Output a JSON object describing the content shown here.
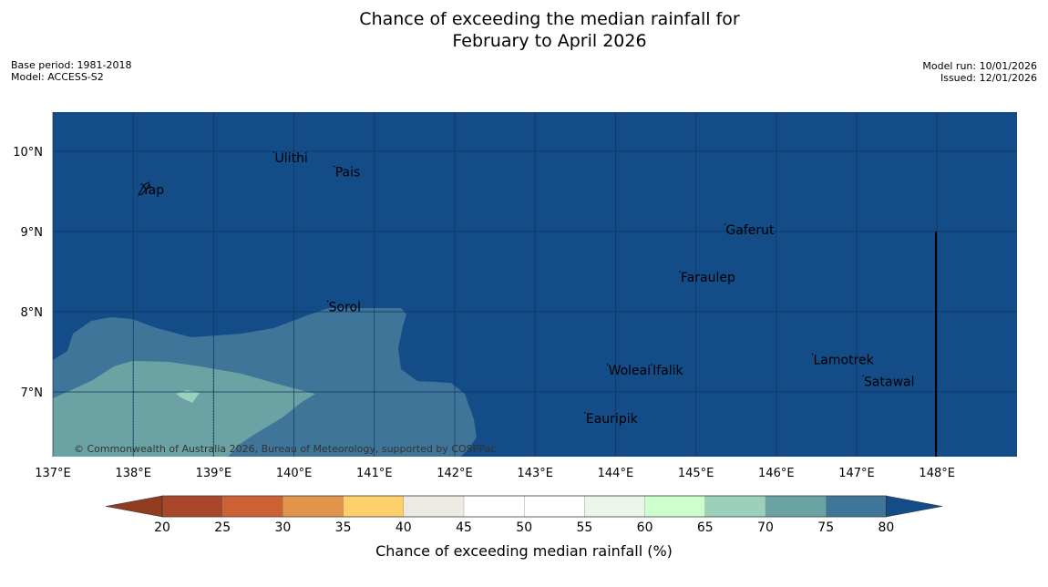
{
  "title": {
    "line1": "Chance of exceeding the median rainfall for",
    "line2": "February to April 2026"
  },
  "meta": {
    "base_period": "Base period: 1981-2018",
    "model": "Model: ACCESS-S2",
    "model_run": "Model run: 10/01/2026",
    "issued": "Issued: 12/01/2026"
  },
  "map": {
    "lon_range": [
      137,
      149
    ],
    "lat_range": [
      6.2,
      10.5
    ],
    "lon_ticks": [
      "137°E",
      "138°E",
      "139°E",
      "140°E",
      "141°E",
      "142°E",
      "143°E",
      "144°E",
      "145°E",
      "146°E",
      "147°E",
      "148°E"
    ],
    "lat_ticks": [
      "10°N",
      "9°N",
      "8°N",
      "7°N"
    ],
    "places": [
      {
        "name": "Ulithi",
        "lon": 139.75,
        "lat": 9.9
      },
      {
        "name": "Pais",
        "lon": 140.5,
        "lat": 9.72
      },
      {
        "name": "Yap",
        "lon": 138.1,
        "lat": 9.5
      },
      {
        "name": "Gaferut",
        "lon": 145.36,
        "lat": 9.0
      },
      {
        "name": "Faraulep",
        "lon": 144.8,
        "lat": 8.41
      },
      {
        "name": "Sorol",
        "lon": 140.42,
        "lat": 8.04
      },
      {
        "name": "Woleai",
        "lon": 143.9,
        "lat": 7.25
      },
      {
        "name": "Ifalik",
        "lon": 144.45,
        "lat": 7.25
      },
      {
        "name": "Lamotrek",
        "lon": 146.45,
        "lat": 7.38
      },
      {
        "name": "Satawal",
        "lon": 147.08,
        "lat": 7.11
      },
      {
        "name": "Eauripik",
        "lon": 143.62,
        "lat": 6.65
      }
    ],
    "copyright": "© Commonwealth of Australia 2026, Bureau of Meteorology, supported by COSPPac"
  },
  "colorbar": {
    "ticks": [
      "20",
      "25",
      "30",
      "35",
      "40",
      "45",
      "50",
      "55",
      "60",
      "65",
      "70",
      "75",
      "80"
    ],
    "colors": [
      "#a9472a",
      "#cc6233",
      "#e2944a",
      "#fdd06c",
      "#ede9e3",
      "#ffffff",
      "#ffffff",
      "#ecf5ea",
      "#ccffcc",
      "#9bd0bb",
      "#6ba3a5",
      "#3f7599"
    ],
    "under_color": "#913c21",
    "over_color": "#134c87",
    "label": "Chance of exceeding median rainfall (%)"
  },
  "colors": {
    "ocean_high": "#134c87",
    "band_75_80": "#3f7599",
    "band_70_75": "#6ba3a5",
    "band_65_70": "#9bd0bb"
  }
}
